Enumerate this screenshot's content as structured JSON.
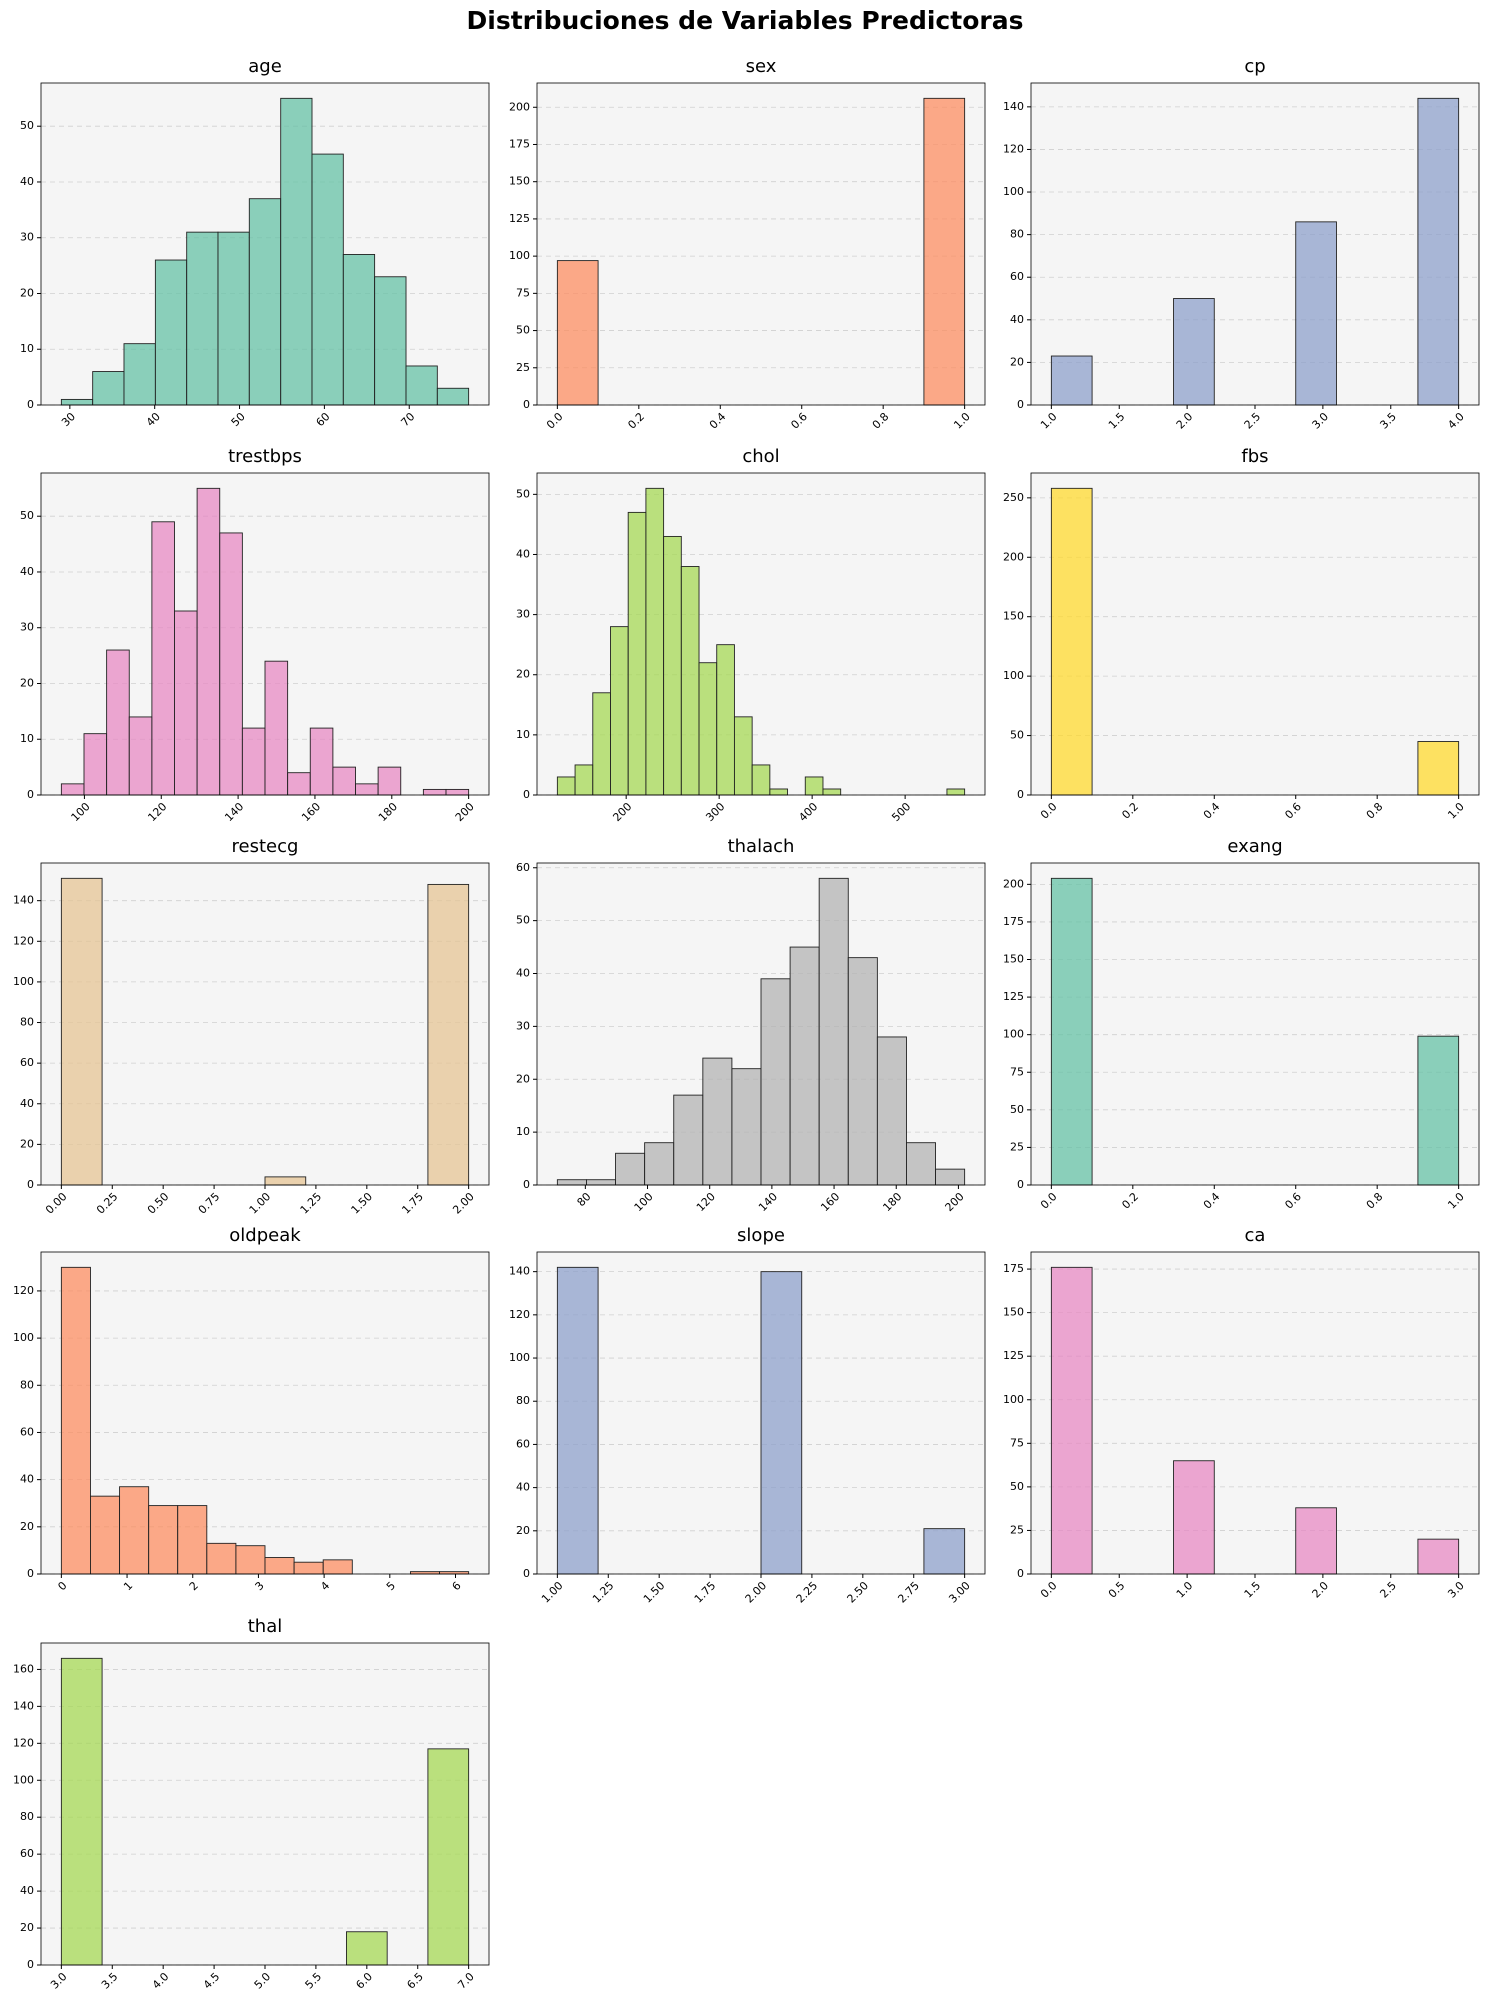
{
  "title": "Distribuciones de Variables Predictoras",
  "chart_data": [
    {
      "type": "histogram",
      "title": "age",
      "color": "#66c2a5",
      "grid": true,
      "bins": [
        29,
        32.69,
        36.38,
        40.08,
        43.77,
        47.46,
        51.15,
        54.85,
        58.54,
        62.23,
        65.92,
        69.62,
        73.31,
        77
      ],
      "values": [
        1,
        6,
        11,
        26,
        31,
        31,
        37,
        55,
        45,
        27,
        23,
        7,
        3
      ],
      "xlim": [
        26.6,
        79.4
      ],
      "ylim": [
        0,
        57.75
      ],
      "xticks": [
        30,
        40,
        50,
        60,
        70
      ],
      "yticks": [
        0,
        10,
        20,
        30,
        40,
        50
      ]
    },
    {
      "type": "histogram",
      "title": "sex",
      "color": "#fc8d62",
      "grid": true,
      "bins": [
        0,
        0.1,
        0.2,
        0.3,
        0.4,
        0.5,
        0.6,
        0.7,
        0.8,
        0.9,
        1
      ],
      "values": [
        97,
        0,
        0,
        0,
        0,
        0,
        0,
        0,
        0,
        206
      ],
      "xlim": [
        -0.05,
        1.05
      ],
      "ylim": [
        0,
        216.3
      ],
      "xticks": [
        {
          "value": 0,
          "label": "0.0"
        },
        0.2,
        0.4,
        0.6,
        0.8,
        {
          "value": 1,
          "label": "1.0"
        }
      ],
      "yticks": [
        0,
        25,
        50,
        75,
        100,
        125,
        150,
        175,
        200
      ]
    },
    {
      "type": "histogram",
      "title": "cp",
      "color": "#8da0cb",
      "grid": true,
      "bins": [
        1,
        1.3,
        1.6,
        1.9,
        2.2,
        2.5,
        2.8,
        3.1,
        3.4,
        3.7,
        4
      ],
      "values": [
        23,
        0,
        0,
        50,
        0,
        0,
        86,
        0,
        0,
        144
      ],
      "xlim": [
        0.85,
        4.15
      ],
      "ylim": [
        0,
        151.2
      ],
      "xticks": [
        {
          "value": 1,
          "label": "1.0"
        },
        1.5,
        {
          "value": 2,
          "label": "2.0"
        },
        2.5,
        {
          "value": 3,
          "label": "3.0"
        },
        3.5,
        {
          "value": 4,
          "label": "4.0"
        }
      ],
      "yticks": [
        0,
        20,
        40,
        60,
        80,
        100,
        120,
        140
      ]
    },
    {
      "type": "histogram",
      "title": "trestbps",
      "color": "#e78ac3",
      "grid": true,
      "bins": [
        94,
        99.89,
        105.78,
        111.67,
        117.56,
        123.44,
        129.33,
        135.22,
        141.11,
        147,
        152.89,
        158.78,
        164.67,
        170.56,
        176.44,
        182.33,
        188.22,
        194.11,
        200
      ],
      "values": [
        2,
        11,
        26,
        14,
        49,
        33,
        55,
        47,
        12,
        24,
        4,
        12,
        5,
        2,
        5,
        0,
        1,
        1
      ],
      "xlim": [
        88.7,
        205.3
      ],
      "ylim": [
        0,
        57.75
      ],
      "xticks": [
        100,
        120,
        140,
        160,
        180,
        200
      ],
      "yticks": [
        0,
        10,
        20,
        30,
        40,
        50
      ]
    },
    {
      "type": "histogram",
      "title": "chol",
      "color": "#a6d854",
      "grid": true,
      "bins": [
        126,
        145.04,
        164.09,
        183.13,
        202.17,
        221.22,
        240.26,
        259.3,
        278.35,
        297.39,
        316.43,
        335.48,
        354.52,
        373.57,
        392.61,
        411.65,
        430.7,
        449.74,
        468.78,
        487.83,
        506.87,
        525.91,
        544.96,
        564
      ],
      "values": [
        3,
        5,
        17,
        28,
        47,
        51,
        43,
        38,
        22,
        25,
        13,
        5,
        1,
        0,
        3,
        1,
        0,
        0,
        0,
        0,
        0,
        0,
        1
      ],
      "xlim": [
        104.1,
        585.9
      ],
      "ylim": [
        0,
        53.55
      ],
      "xticks": [
        200,
        300,
        400,
        500
      ],
      "yticks": [
        0,
        10,
        20,
        30,
        40,
        50
      ]
    },
    {
      "type": "histogram",
      "title": "fbs",
      "color": "#ffd92f",
      "grid": true,
      "bins": [
        0,
        0.1,
        0.2,
        0.3,
        0.4,
        0.5,
        0.6,
        0.7,
        0.8,
        0.9,
        1
      ],
      "values": [
        258,
        0,
        0,
        0,
        0,
        0,
        0,
        0,
        0,
        45
      ],
      "xlim": [
        -0.05,
        1.05
      ],
      "ylim": [
        0,
        270.9
      ],
      "xticks": [
        {
          "value": 0,
          "label": "0.0"
        },
        0.2,
        0.4,
        0.6,
        0.8,
        {
          "value": 1,
          "label": "1.0"
        }
      ],
      "yticks": [
        0,
        50,
        100,
        150,
        200,
        250
      ]
    },
    {
      "type": "histogram",
      "title": "restecg",
      "color": "#e5c494",
      "grid": true,
      "bins": [
        0,
        0.2,
        0.4,
        0.6,
        0.8,
        1,
        1.2,
        1.4,
        1.6,
        1.8,
        2
      ],
      "values": [
        151,
        0,
        0,
        0,
        0,
        4,
        0,
        0,
        0,
        148
      ],
      "xlim": [
        -0.1,
        2.1
      ],
      "ylim": [
        0,
        158.55
      ],
      "xticks": [
        {
          "value": 0,
          "label": "0.00"
        },
        0.25,
        {
          "value": 0.5,
          "label": "0.50"
        },
        0.75,
        {
          "value": 1,
          "label": "1.00"
        },
        1.25,
        {
          "value": 1.5,
          "label": "1.50"
        },
        1.75,
        {
          "value": 2,
          "label": "2.00"
        }
      ],
      "yticks": [
        0,
        20,
        40,
        60,
        80,
        100,
        120,
        140
      ]
    },
    {
      "type": "histogram",
      "title": "thalach",
      "color": "#b3b3b3",
      "grid": true,
      "bins": [
        71,
        80.36,
        89.71,
        99.07,
        108.43,
        117.79,
        127.14,
        136.5,
        145.86,
        155.21,
        164.57,
        173.93,
        183.29,
        192.64,
        202
      ],
      "values": [
        1,
        1,
        6,
        8,
        17,
        24,
        22,
        39,
        45,
        58,
        43,
        28,
        8,
        3
      ],
      "xlim": [
        64.45,
        208.55
      ],
      "ylim": [
        0,
        60.9
      ],
      "xticks": [
        80,
        100,
        120,
        140,
        160,
        180,
        200
      ],
      "yticks": [
        0,
        10,
        20,
        30,
        40,
        50,
        60
      ]
    },
    {
      "type": "histogram",
      "title": "exang",
      "color": "#66c2a5",
      "grid": true,
      "bins": [
        0,
        0.1,
        0.2,
        0.3,
        0.4,
        0.5,
        0.6,
        0.7,
        0.8,
        0.9,
        1
      ],
      "values": [
        204,
        0,
        0,
        0,
        0,
        0,
        0,
        0,
        0,
        99
      ],
      "xlim": [
        -0.05,
        1.05
      ],
      "ylim": [
        0,
        214.2
      ],
      "xticks": [
        {
          "value": 0,
          "label": "0.0"
        },
        0.2,
        0.4,
        0.6,
        0.8,
        {
          "value": 1,
          "label": "1.0"
        }
      ],
      "yticks": [
        0,
        25,
        50,
        75,
        100,
        125,
        150,
        175,
        200
      ]
    },
    {
      "type": "histogram",
      "title": "oldpeak",
      "color": "#fc8d62",
      "grid": true,
      "bins": [
        0,
        0.443,
        0.886,
        1.329,
        1.771,
        2.214,
        2.657,
        3.1,
        3.543,
        3.986,
        4.429,
        4.871,
        5.314,
        5.757,
        6.2
      ],
      "values": [
        130,
        33,
        37,
        29,
        29,
        13,
        12,
        7,
        5,
        6,
        0,
        0,
        1,
        1
      ],
      "xlim": [
        -0.31,
        6.51
      ],
      "ylim": [
        0,
        136.5
      ],
      "xticks": [
        0,
        1,
        2,
        3,
        4,
        5,
        6
      ],
      "yticks": [
        0,
        20,
        40,
        60,
        80,
        100,
        120
      ]
    },
    {
      "type": "histogram",
      "title": "slope",
      "color": "#8da0cb",
      "grid": true,
      "bins": [
        1,
        1.2,
        1.4,
        1.6,
        1.8,
        2,
        2.2,
        2.4,
        2.6,
        2.8,
        3
      ],
      "values": [
        142,
        0,
        0,
        0,
        0,
        140,
        0,
        0,
        0,
        21
      ],
      "xlim": [
        0.9,
        3.1
      ],
      "ylim": [
        0,
        149.1
      ],
      "xticks": [
        {
          "value": 1,
          "label": "1.00"
        },
        1.25,
        {
          "value": 1.5,
          "label": "1.50"
        },
        1.75,
        {
          "value": 2,
          "label": "2.00"
        },
        2.25,
        {
          "value": 2.5,
          "label": "2.50"
        },
        2.75,
        {
          "value": 3,
          "label": "3.00"
        }
      ],
      "yticks": [
        0,
        20,
        40,
        60,
        80,
        100,
        120,
        140
      ]
    },
    {
      "type": "histogram",
      "title": "ca",
      "color": "#e78ac3",
      "grid": true,
      "bins": [
        0,
        0.3,
        0.6,
        0.9,
        1.2,
        1.5,
        1.8,
        2.1,
        2.4,
        2.7,
        3
      ],
      "values": [
        176,
        0,
        0,
        65,
        0,
        0,
        38,
        0,
        0,
        20
      ],
      "xlim": [
        -0.15,
        3.15
      ],
      "ylim": [
        0,
        184.8
      ],
      "xticks": [
        {
          "value": 0,
          "label": "0.0"
        },
        0.5,
        {
          "value": 1,
          "label": "1.0"
        },
        1.5,
        {
          "value": 2,
          "label": "2.0"
        },
        2.5,
        {
          "value": 3,
          "label": "3.0"
        }
      ],
      "yticks": [
        0,
        25,
        50,
        75,
        100,
        125,
        150,
        175
      ]
    },
    {
      "type": "histogram",
      "title": "thal",
      "color": "#a6d854",
      "grid": true,
      "bins": [
        3,
        3.4,
        3.8,
        4.2,
        4.6,
        5,
        5.4,
        5.8,
        6.2,
        6.6,
        7
      ],
      "values": [
        166,
        0,
        0,
        0,
        0,
        0,
        0,
        18,
        0,
        117
      ],
      "xlim": [
        2.8,
        7.2
      ],
      "ylim": [
        0,
        174.3
      ],
      "xticks": [
        {
          "value": 3,
          "label": "3.0"
        },
        3.5,
        {
          "value": 4,
          "label": "4.0"
        },
        4.5,
        {
          "value": 5,
          "label": "5.0"
        },
        5.5,
        {
          "value": 6,
          "label": "6.0"
        },
        6.5,
        {
          "value": 7,
          "label": "7.0"
        }
      ],
      "yticks": [
        0,
        20,
        40,
        60,
        80,
        100,
        120,
        140,
        160
      ]
    }
  ]
}
